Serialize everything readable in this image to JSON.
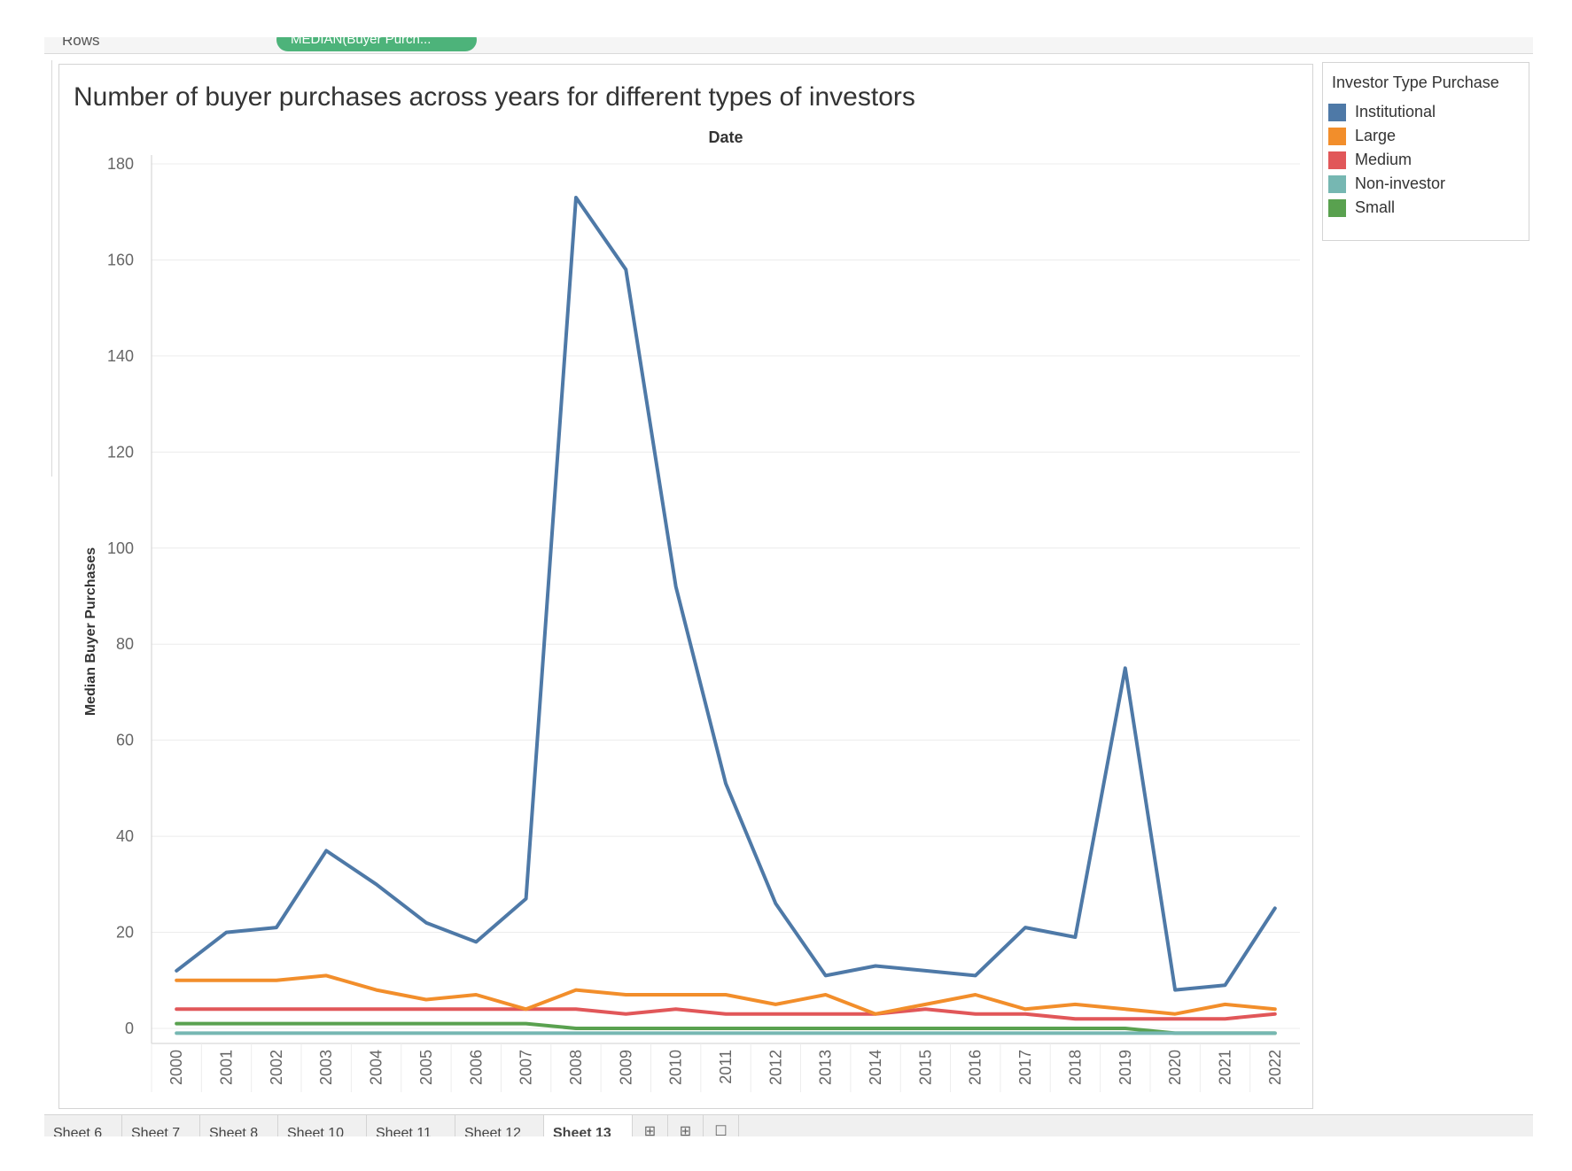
{
  "shelf": {
    "rows_label": "Rows",
    "pill_label": "MEDIAN(Buyer Purch..."
  },
  "chart_data": {
    "type": "line",
    "title": "Number of buyer purchases across years for different types of investors",
    "xlabel": "Date",
    "ylabel": "Median Buyer Purchases",
    "ylim": [
      -2,
      180
    ],
    "yticks": [
      0,
      20,
      40,
      60,
      80,
      100,
      120,
      140,
      160,
      180
    ],
    "x": [
      "2000",
      "2001",
      "2002",
      "2003",
      "2004",
      "2005",
      "2006",
      "2007",
      "2008",
      "2009",
      "2010",
      "2011",
      "2012",
      "2013",
      "2014",
      "2015",
      "2016",
      "2017",
      "2018",
      "2019",
      "2020",
      "2021",
      "2022"
    ],
    "legend_title": "Investor Type Purchase",
    "legend_position": "right",
    "grid": true,
    "series": [
      {
        "name": "Institutional",
        "color": "#4e79a7",
        "values": [
          12,
          20,
          21,
          37,
          30,
          22,
          18,
          27,
          173,
          158,
          92,
          51,
          26,
          11,
          13,
          12,
          11,
          21,
          19,
          75,
          8,
          9,
          25
        ]
      },
      {
        "name": "Large",
        "color": "#f28e2b",
        "values": [
          10,
          10,
          10,
          11,
          8,
          6,
          7,
          4,
          8,
          7,
          7,
          7,
          5,
          7,
          3,
          5,
          7,
          4,
          5,
          4,
          3,
          5,
          4
        ]
      },
      {
        "name": "Medium",
        "color": "#e15759",
        "values": [
          4,
          4,
          4,
          4,
          4,
          4,
          4,
          4,
          4,
          3,
          4,
          3,
          3,
          3,
          3,
          4,
          3,
          3,
          2,
          2,
          2,
          2,
          3
        ]
      },
      {
        "name": "Non-investor",
        "color": "#76b7b2",
        "values": [
          -1,
          -1,
          -1,
          -1,
          -1,
          -1,
          -1,
          -1,
          -1,
          -1,
          -1,
          -1,
          -1,
          -1,
          -1,
          -1,
          -1,
          -1,
          -1,
          -1,
          -1,
          -1,
          -1
        ]
      },
      {
        "name": "Small",
        "color": "#59a14f",
        "values": [
          1,
          1,
          1,
          1,
          1,
          1,
          1,
          1,
          0,
          0,
          0,
          0,
          0,
          0,
          0,
          0,
          0,
          0,
          0,
          0,
          -1,
          -1,
          -1
        ]
      }
    ]
  },
  "tabs": [
    "Sheet 6",
    "Sheet 7",
    "Sheet 8",
    "Sheet 10",
    "Sheet 11",
    "Sheet 12",
    "Sheet 13"
  ],
  "active_tab": "Sheet 13",
  "tab_icons": [
    "new-worksheet-icon",
    "new-dashboard-icon",
    "new-story-icon"
  ]
}
